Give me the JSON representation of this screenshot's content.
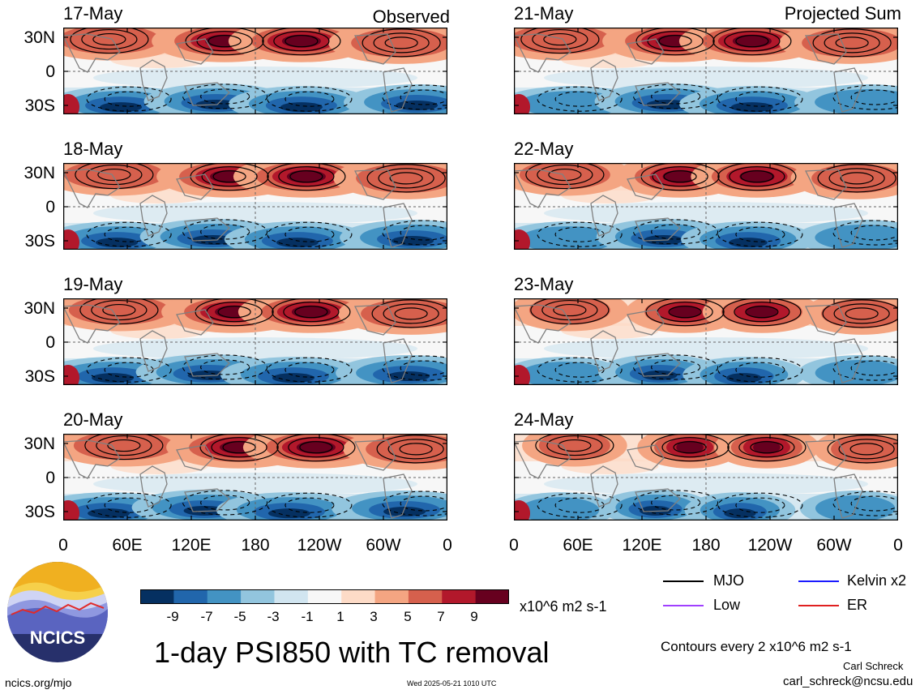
{
  "headers": {
    "left": "Observed",
    "right": "Projected Sum"
  },
  "panels_left": [
    {
      "date": "17-May"
    },
    {
      "date": "18-May"
    },
    {
      "date": "19-May"
    },
    {
      "date": "20-May"
    }
  ],
  "panels_right": [
    {
      "date": "21-May"
    },
    {
      "date": "22-May"
    },
    {
      "date": "23-May"
    },
    {
      "date": "24-May"
    }
  ],
  "lat_labels": [
    "30N",
    "0",
    "30S"
  ],
  "lon_labels": [
    "0",
    "60E",
    "120E",
    "180",
    "120W",
    "60W",
    "0"
  ],
  "colorbar": {
    "labels": [
      "-9",
      "-7",
      "-5",
      "-3",
      "-1",
      "1",
      "3",
      "5",
      "7",
      "9"
    ],
    "units": "x10^6 m2 s-1",
    "colors": [
      "#053061",
      "#2166ac",
      "#4393c3",
      "#92c5de",
      "#d1e5f0",
      "#f7f7f7",
      "#fddbc7",
      "#f4a582",
      "#d6604d",
      "#b2182b",
      "#67001f"
    ]
  },
  "title": "1-day PSI850 with TC removal",
  "legend": [
    {
      "label": "MJO",
      "color": "#000000"
    },
    {
      "label": "Kelvin x2",
      "color": "#1a1aff"
    },
    {
      "label": "Low",
      "color": "#a040ff"
    },
    {
      "label": "ER",
      "color": "#e02020"
    }
  ],
  "contour_note": "Contours every 2 x10^6 m2 s-1",
  "author": "Carl Schreck",
  "email": "carl_schreck@ncsu.edu",
  "website": "ncics.org/mjo",
  "timestamp": "Wed 2025-05-21 1010 UTC",
  "logo_text": "NCICS"
}
